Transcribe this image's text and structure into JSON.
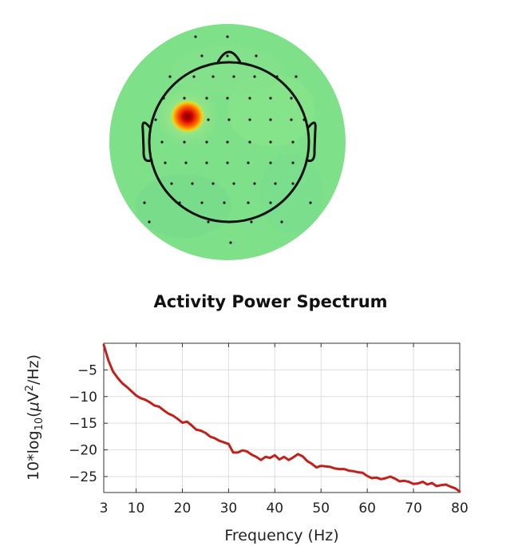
{
  "topoplot": {
    "background_color": "#7fe08a",
    "outline_color": "#111111",
    "hotspot_colors": [
      "#6b0000",
      "#d40000",
      "#ff6a00",
      "#ffd200"
    ],
    "hotspot_location": "upper-left (left frontal)"
  },
  "chart_data": {
    "type": "line",
    "title": "Activity Power Spectrum",
    "xlabel": "Frequency (Hz)",
    "ylabel": {
      "part1": "10*log",
      "subscript": "10",
      "part2": "(",
      "mu": "μ",
      "part3": "V",
      "superscript": "2",
      "part4": "/Hz)"
    },
    "xlim": [
      3,
      80
    ],
    "ylim": [
      -28,
      0
    ],
    "xticks": [
      3,
      10,
      20,
      30,
      40,
      50,
      60,
      70,
      80
    ],
    "yticks": [
      -5,
      -10,
      -15,
      -20,
      -25
    ],
    "grid": true,
    "series_color": "#c0221b",
    "series": [
      {
        "x": [
          3,
          4,
          5,
          6,
          7,
          8,
          9,
          10,
          11,
          12,
          13,
          14,
          15,
          16,
          17,
          18,
          19,
          20,
          21,
          22,
          23,
          24,
          25,
          26,
          27,
          28,
          29,
          30,
          31,
          32,
          33,
          34,
          35,
          36,
          37,
          38,
          39,
          40,
          41,
          42,
          43,
          44,
          45,
          46,
          47,
          48,
          49,
          50,
          51,
          52,
          53,
          54,
          55,
          56,
          57,
          58,
          59,
          60,
          61,
          62,
          63,
          64,
          65,
          66,
          67,
          68,
          69,
          70,
          71,
          72,
          73,
          74,
          75,
          76,
          77,
          78,
          79,
          80
        ],
        "values": [
          -0.3,
          -3.2,
          -5.3,
          -6.5,
          -7.5,
          -8.2,
          -9.0,
          -9.8,
          -10.3,
          -10.6,
          -11.1,
          -11.7,
          -11.9,
          -12.6,
          -13.2,
          -13.6,
          -14.2,
          -14.9,
          -14.7,
          -15.4,
          -16.2,
          -16.4,
          -16.8,
          -17.5,
          -17.8,
          -18.3,
          -18.6,
          -18.9,
          -20.5,
          -20.5,
          -20.1,
          -20.3,
          -20.9,
          -21.3,
          -21.9,
          -21.3,
          -21.5,
          -21.0,
          -21.8,
          -21.3,
          -21.9,
          -21.4,
          -20.8,
          -21.2,
          -22.1,
          -22.6,
          -23.3,
          -23.0,
          -23.1,
          -23.2,
          -23.5,
          -23.6,
          -23.6,
          -23.9,
          -24.0,
          -24.2,
          -24.3,
          -24.9,
          -25.3,
          -25.2,
          -25.5,
          -25.3,
          -25.0,
          -25.4,
          -25.9,
          -25.8,
          -26.0,
          -26.4,
          -26.3,
          -26.0,
          -26.5,
          -26.2,
          -26.8,
          -26.6,
          -26.5,
          -26.9,
          -27.2,
          -27.8
        ]
      }
    ]
  }
}
